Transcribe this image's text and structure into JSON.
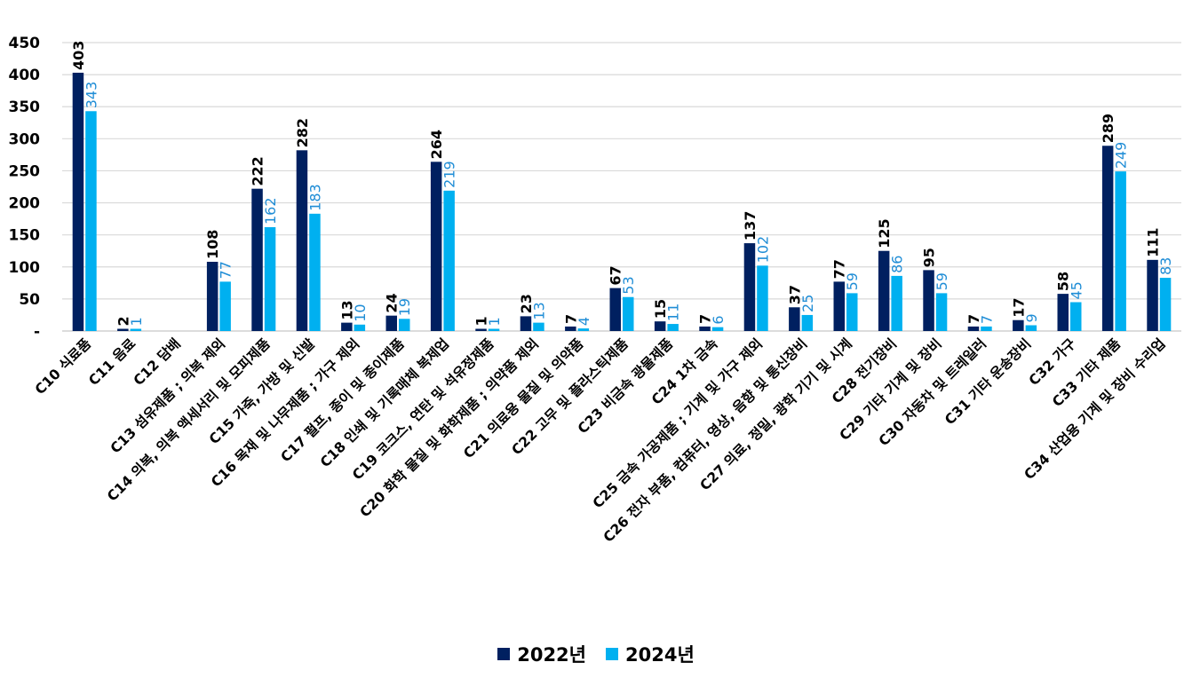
{
  "chart_data": {
    "type": "bar",
    "title": "",
    "xlabel": "",
    "ylabel": "",
    "ylim": [
      0,
      450
    ],
    "yticks": [
      0,
      50,
      100,
      150,
      200,
      250,
      300,
      350,
      400,
      450
    ],
    "ytick_labels": [
      "-",
      "50",
      "100",
      "150",
      "200",
      "250",
      "300",
      "350",
      "400",
      "450"
    ],
    "grid": true,
    "legend_position": "bottom-center",
    "categories": [
      "C10 식료품",
      "C11 음료",
      "C12 담배",
      "C13 섬유제품 ; 의복 제외",
      "C14 의복, 의복 액세서리 및 모피제품",
      "C15 가죽, 가방 및 신발",
      "C16 목재 및 나무제품 ; 가구 제외",
      "C17 펄프, 종이 및 종이제품",
      "C18 인쇄 및 기록매체 복제업",
      "C19 코크스, 연탄 및 석유정제품",
      "C20 화학 물질 및 화학제품 ; 의약품 제외",
      "C21 의료용 물질 및 의약품",
      "C22 고무 및 플라스틱제품",
      "C23 비금속 광물제품",
      "C24 1차 금속",
      "C25 금속 가공제품 ; 기계 및 가구 제외",
      "C26 전자 부품, 컴퓨터, 영상, 음향 및 통신장비",
      "C27 의료, 정밀, 광학 기기 및 시계",
      "C28 전기장비",
      "C29 기타 기계 및 장비",
      "C30 자동차 및 트레일러",
      "C31 기타 운송장비",
      "C32 가구",
      "C33 기타 제품",
      "C34 산업용 기계 및 장비 수리업"
    ],
    "series": [
      {
        "name": "2022년",
        "color": "#002060",
        "values": [
          403,
          2,
          null,
          108,
          222,
          282,
          13,
          24,
          264,
          1,
          23,
          7,
          67,
          15,
          7,
          137,
          37,
          77,
          125,
          95,
          7,
          17,
          58,
          289,
          111
        ]
      },
      {
        "name": "2024년",
        "color": "#00B0F0",
        "label_color": "#1F8DD6",
        "values": [
          343,
          1,
          null,
          77,
          162,
          183,
          10,
          19,
          219,
          1,
          13,
          4,
          53,
          11,
          6,
          102,
          25,
          59,
          86,
          59,
          7,
          9,
          45,
          249,
          83
        ]
      }
    ]
  }
}
